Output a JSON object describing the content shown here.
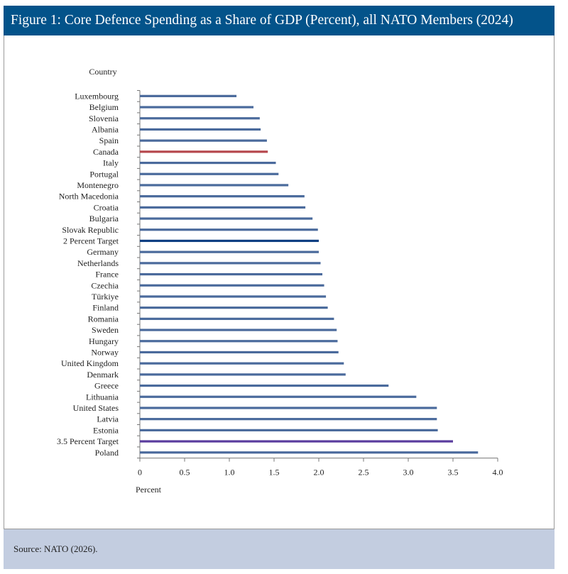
{
  "header": {
    "title": "Figure 1: Core Defence Spending as a Share of GDP (Percent), all NATO Members (2024)"
  },
  "footer": {
    "source": "Source: NATO (2026)."
  },
  "chart_data": {
    "type": "bar",
    "orientation": "horizontal",
    "title": "Figure 1: Core Defence Spending as a Share of GDP (Percent), all NATO Members (2024)",
    "ylabel": "Country",
    "xlabel": "Percent",
    "xlim": [
      0,
      4.0
    ],
    "xticks": [
      "0",
      "0.5",
      "1.0",
      "1.5",
      "2.0",
      "2.5",
      "3.0",
      "3.5",
      "4.0"
    ],
    "grid": false,
    "colors": {
      "default": "#4a6a9c",
      "canada": "#b5474d",
      "target2": "#0d3f82",
      "target35": "#5a3c9e"
    },
    "categories": [
      "Luxembourg",
      "Belgium",
      "Slovenia",
      "Albania",
      "Spain",
      "Canada",
      "Italy",
      "Portugal",
      "Montenegro",
      "North Macedonia",
      "Croatia",
      "Bulgaria",
      "Slovak Republic",
      "2 Percent Target",
      "Germany",
      "Netherlands",
      "France",
      "Czechia",
      "Türkiye",
      "Finland",
      "Romania",
      "Sweden",
      "Hungary",
      "Norway",
      "United Kingdom",
      "Denmark",
      "Greece",
      "Lithuania",
      "United States",
      "Latvia",
      "Estonia",
      "3.5 Percent Target",
      "Poland"
    ],
    "values": [
      1.08,
      1.27,
      1.34,
      1.35,
      1.42,
      1.43,
      1.52,
      1.55,
      1.66,
      1.84,
      1.85,
      1.93,
      1.99,
      2.0,
      2.0,
      2.02,
      2.04,
      2.06,
      2.08,
      2.1,
      2.17,
      2.2,
      2.21,
      2.22,
      2.28,
      2.3,
      2.78,
      3.09,
      3.32,
      3.32,
      3.33,
      3.5,
      3.78
    ],
    "highlight": {
      "Canada": "canada",
      "2 Percent Target": "target2",
      "3.5 Percent Target": "target35"
    }
  }
}
